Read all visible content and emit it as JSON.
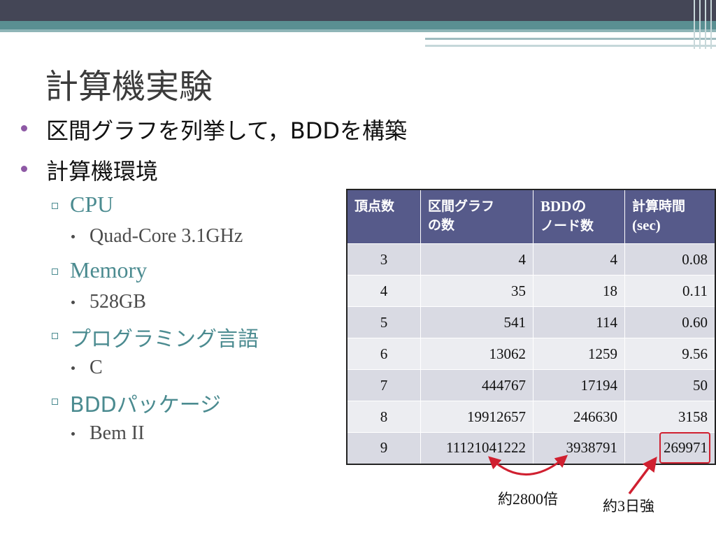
{
  "slide": {
    "title": "計算機実験",
    "bullets": [
      "区間グラフを列挙して，BDDを構築",
      "計算機環境"
    ],
    "env": [
      {
        "label": "CPU",
        "value": "Quad-Core 3.1GHz"
      },
      {
        "label": "Memory",
        "value": "528GB"
      },
      {
        "label": "プログラミング言語",
        "value": "C"
      },
      {
        "label": "BDDパッケージ",
        "value": "Bem II"
      }
    ]
  },
  "table": {
    "headers": [
      {
        "line1": "頂点数",
        "line2": ""
      },
      {
        "line1": "区間グラフ",
        "line2": "の数"
      },
      {
        "line1": "BDDの",
        "line2": "ノード数"
      },
      {
        "line1": "計算時間",
        "line2": "(sec)"
      }
    ],
    "rows": [
      [
        "3",
        "4",
        "4",
        "0.08"
      ],
      [
        "4",
        "35",
        "18",
        "0.11"
      ],
      [
        "5",
        "541",
        "114",
        "0.60"
      ],
      [
        "6",
        "13062",
        "1259",
        "9.56"
      ],
      [
        "7",
        "444767",
        "17194",
        "50"
      ],
      [
        "8",
        "19912657",
        "246630",
        "3158"
      ],
      [
        "9",
        "11121041222",
        "3938791",
        "269971"
      ]
    ]
  },
  "annotations": {
    "ratio_prefix": "約",
    "ratio_value": "2800",
    "ratio_suffix": "倍",
    "time_prefix": "約",
    "time_value": "3",
    "time_suffix": "日強"
  },
  "colors": {
    "top_bar": "#444656",
    "accent_teal": "#5a8f92",
    "bullet_purple": "#8e59a5",
    "header_fill": "#565a8a",
    "highlight_red": "#d02030"
  }
}
